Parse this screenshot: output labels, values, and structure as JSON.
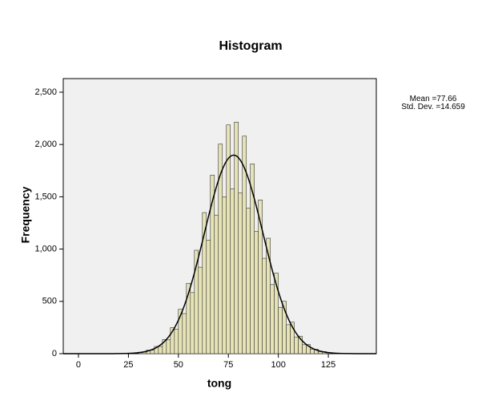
{
  "chart_data": {
    "type": "histogram",
    "title": "Histogram",
    "xlabel": "tong",
    "ylabel": "Frequency",
    "bins": [
      30,
      32,
      34,
      36,
      38,
      40,
      42,
      44,
      46,
      48,
      50,
      52,
      54,
      56,
      58,
      60,
      62,
      64,
      66,
      68,
      70,
      72,
      74,
      76,
      78,
      80,
      82,
      84,
      86,
      88,
      90,
      92,
      94,
      96,
      98,
      100,
      102,
      104,
      106,
      108,
      110,
      112,
      114,
      116,
      118,
      120,
      122,
      124,
      126
    ],
    "counts": [
      14,
      15,
      33,
      33,
      69,
      69,
      136,
      132,
      249,
      233,
      425,
      383,
      673,
      584,
      989,
      827,
      1349,
      1086,
      1707,
      1325,
      2004,
      1499,
      2187,
      1576,
      2214,
      1536,
      2080,
      1391,
      1815,
      1169,
      1470,
      912,
      1104,
      661,
      770,
      443,
      501,
      277,
      301,
      160,
      167,
      86,
      87,
      43,
      42,
      20,
      19,
      8
    ],
    "color": "#e6e3b6",
    "xlim": [
      -7.6,
      149
    ],
    "ylim": [
      0,
      2630
    ],
    "xticks": [
      0,
      25,
      50,
      75,
      100,
      125
    ],
    "yticks": [
      0,
      {
        "value": 500,
        "label": "500"
      },
      {
        "value": 1000,
        "label": "1,000"
      },
      {
        "value": 1500,
        "label": "1,500"
      },
      {
        "value": 2000,
        "label": "2,000"
      },
      {
        "value": 2500,
        "label": "2,500"
      }
    ],
    "stats": [
      {
        "label": "Mean =",
        "value": 77.66
      },
      {
        "label": "Std. Dev. =",
        "value": 14.659
      }
    ],
    "normal_curve": true
  }
}
